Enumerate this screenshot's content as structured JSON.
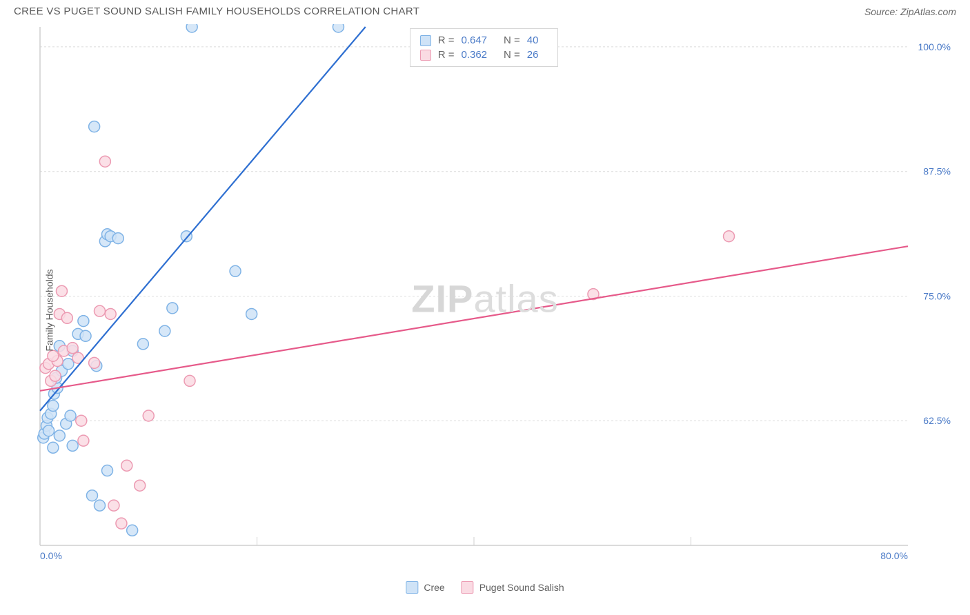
{
  "header": {
    "title": "CREE VS PUGET SOUND SALISH FAMILY HOUSEHOLDS CORRELATION CHART",
    "source": "Source: ZipAtlas.com"
  },
  "watermark": {
    "zip": "ZIP",
    "atlas": "atlas"
  },
  "chart": {
    "type": "scatter",
    "ylabel": "Family Households",
    "background_color": "#ffffff",
    "grid_color": "#dcdcdc",
    "axis_color": "#cfcfcf",
    "text_color": "#5a5a5a",
    "value_color": "#4a7ac7",
    "xlim": [
      0,
      80
    ],
    "ylim": [
      50,
      102
    ],
    "xtick_start": "0.0%",
    "xtick_end": "80.0%",
    "yticks": [
      {
        "v": 62.5,
        "label": "62.5%"
      },
      {
        "v": 75.0,
        "label": "75.0%"
      },
      {
        "v": 87.5,
        "label": "87.5%"
      },
      {
        "v": 100.0,
        "label": "100.0%"
      }
    ],
    "xtick_positions": [
      0,
      20,
      40,
      60,
      80
    ],
    "marker_radius": 8,
    "marker_stroke_width": 1.5,
    "line_width": 2.2,
    "series": [
      {
        "name": "Cree",
        "color_fill": "#cfe3f7",
        "color_stroke": "#7fb3e6",
        "line_color": "#2e6fd1",
        "R": "0.647",
        "N": "40",
        "trend": {
          "x1": 0,
          "y1": 63.5,
          "x2": 30,
          "y2": 102
        },
        "points": [
          [
            0.3,
            60.8
          ],
          [
            0.4,
            61.2
          ],
          [
            0.6,
            62.0
          ],
          [
            0.8,
            61.5
          ],
          [
            0.7,
            62.8
          ],
          [
            1.0,
            63.2
          ],
          [
            1.2,
            64.0
          ],
          [
            1.3,
            65.2
          ],
          [
            1.6,
            65.8
          ],
          [
            1.5,
            66.8
          ],
          [
            1.2,
            59.8
          ],
          [
            1.8,
            61.0
          ],
          [
            2.4,
            62.2
          ],
          [
            2.8,
            63.0
          ],
          [
            2.0,
            67.5
          ],
          [
            2.6,
            68.2
          ],
          [
            1.8,
            70.0
          ],
          [
            3.0,
            69.5
          ],
          [
            3.5,
            71.2
          ],
          [
            4.2,
            71.0
          ],
          [
            4.0,
            72.5
          ],
          [
            5.2,
            68.0
          ],
          [
            6.0,
            80.5
          ],
          [
            6.2,
            81.2
          ],
          [
            6.5,
            81.0
          ],
          [
            7.2,
            80.8
          ],
          [
            5.0,
            92.0
          ],
          [
            9.5,
            70.2
          ],
          [
            11.5,
            71.5
          ],
          [
            12.2,
            73.8
          ],
          [
            13.5,
            81.0
          ],
          [
            14.0,
            102.0
          ],
          [
            18.0,
            77.5
          ],
          [
            19.5,
            73.2
          ],
          [
            27.5,
            102.0
          ],
          [
            3.0,
            60.0
          ],
          [
            4.8,
            55.0
          ],
          [
            6.2,
            57.5
          ],
          [
            8.5,
            51.5
          ],
          [
            5.5,
            54.0
          ]
        ]
      },
      {
        "name": "Puget Sound Salish",
        "color_fill": "#fadbe3",
        "color_stroke": "#ec9ab2",
        "line_color": "#e65a8a",
        "R": "0.362",
        "N": "26",
        "trend": {
          "x1": 0,
          "y1": 65.5,
          "x2": 80,
          "y2": 80.0
        },
        "points": [
          [
            0.5,
            67.8
          ],
          [
            0.8,
            68.2
          ],
          [
            1.0,
            66.5
          ],
          [
            1.4,
            67.0
          ],
          [
            1.6,
            68.5
          ],
          [
            1.2,
            69.0
          ],
          [
            2.2,
            69.5
          ],
          [
            1.8,
            73.2
          ],
          [
            2.5,
            72.8
          ],
          [
            2.0,
            75.5
          ],
          [
            3.0,
            69.8
          ],
          [
            3.5,
            68.8
          ],
          [
            4.0,
            60.5
          ],
          [
            3.8,
            62.5
          ],
          [
            5.0,
            68.3
          ],
          [
            5.5,
            73.5
          ],
          [
            6.5,
            73.2
          ],
          [
            6.0,
            88.5
          ],
          [
            8.0,
            58.0
          ],
          [
            9.2,
            56.0
          ],
          [
            10.0,
            63.0
          ],
          [
            6.8,
            54.0
          ],
          [
            7.5,
            52.2
          ],
          [
            13.8,
            66.5
          ],
          [
            51.0,
            75.2
          ],
          [
            63.5,
            81.0
          ]
        ]
      }
    ]
  },
  "legend": {
    "series1_label": "Cree",
    "series2_label": "Puget Sound Salish"
  },
  "stats_labels": {
    "R": "R =",
    "N": "N ="
  }
}
